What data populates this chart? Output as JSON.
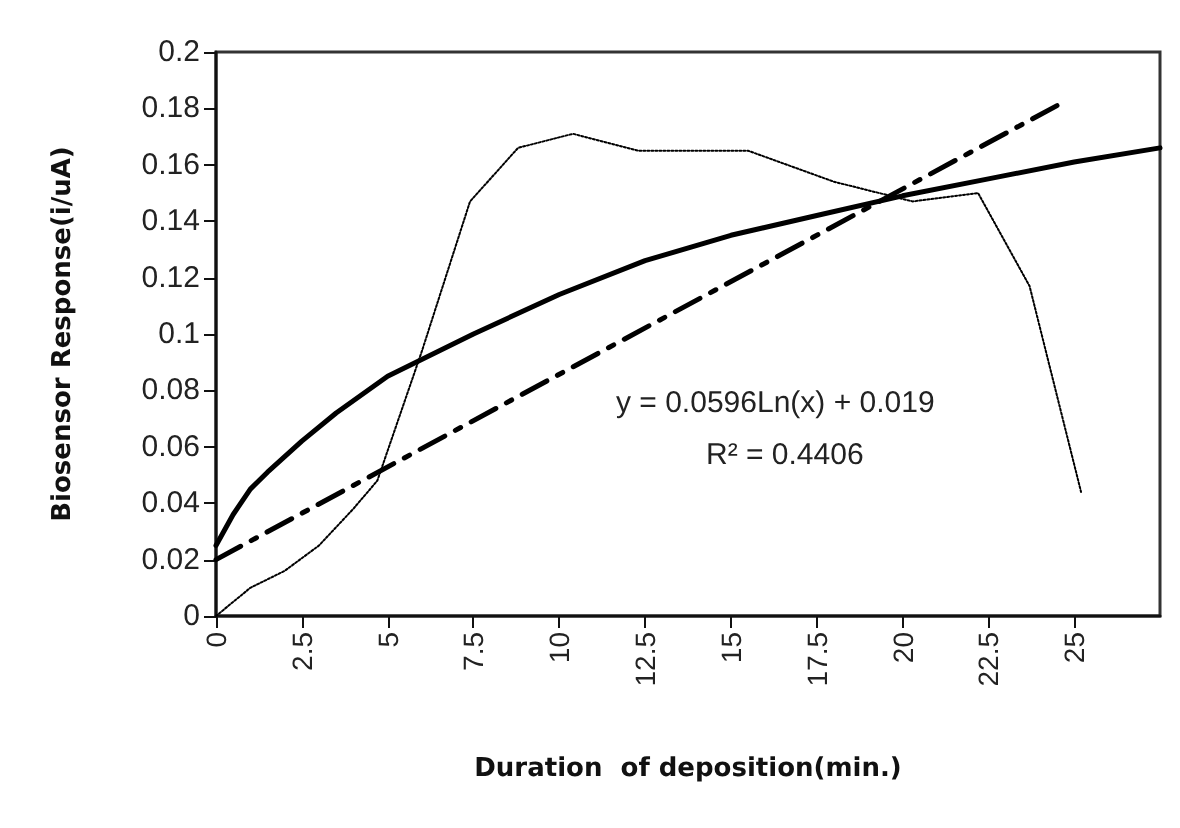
{
  "chart_data": {
    "type": "line",
    "xlabel": "Duration  of deposition(min.)",
    "ylabel": "Biosensor Response(i/uA)",
    "xlim": [
      0,
      27.5
    ],
    "xticks": [
      0,
      2.5,
      5,
      7.5,
      10,
      12.5,
      15,
      17.5,
      20,
      22.5,
      25
    ],
    "ylim": [
      0,
      0.2
    ],
    "yticks": [
      0,
      0.02,
      0.04,
      0.06,
      0.08,
      0.1,
      0.12,
      0.14,
      0.16,
      0.18,
      0.2
    ],
    "grid": false,
    "marker": "none",
    "series": [
      {
        "color": "#000000",
        "line_style": "dotted",
        "x": [
          0,
          1,
          2,
          3,
          4,
          4.7,
          6,
          7.4,
          8.8,
          10.4,
          12.3,
          15.5,
          18,
          20.3,
          22.2,
          23.7,
          25.2
        ],
        "values": [
          0,
          0.01,
          0.016,
          0.025,
          0.038,
          0.048,
          0.094,
          0.147,
          0.166,
          0.171,
          0.165,
          0.165,
          0.154,
          0.147,
          0.15,
          0.117,
          0.044
        ]
      },
      {
        "color": "#000000",
        "line_style": "solid",
        "x": [
          0,
          0.5,
          1,
          1.5,
          2.5,
          3.5,
          5,
          7.5,
          10,
          12.5,
          15,
          17.5,
          20,
          22.5,
          25,
          27.5
        ],
        "values": [
          0.025,
          0.036,
          0.045,
          0.051,
          0.062,
          0.072,
          0.085,
          0.1,
          0.114,
          0.126,
          0.135,
          0.142,
          0.149,
          0.155,
          0.161,
          0.166
        ]
      },
      {
        "color": "#000000",
        "line_style": "dashed",
        "x": [
          0,
          24.5
        ],
        "values": [
          0.02,
          0.181
        ]
      }
    ],
    "annotations": [
      "y = 0.0596Ln(x) + 0.019",
      "R² = 0.4406"
    ]
  }
}
